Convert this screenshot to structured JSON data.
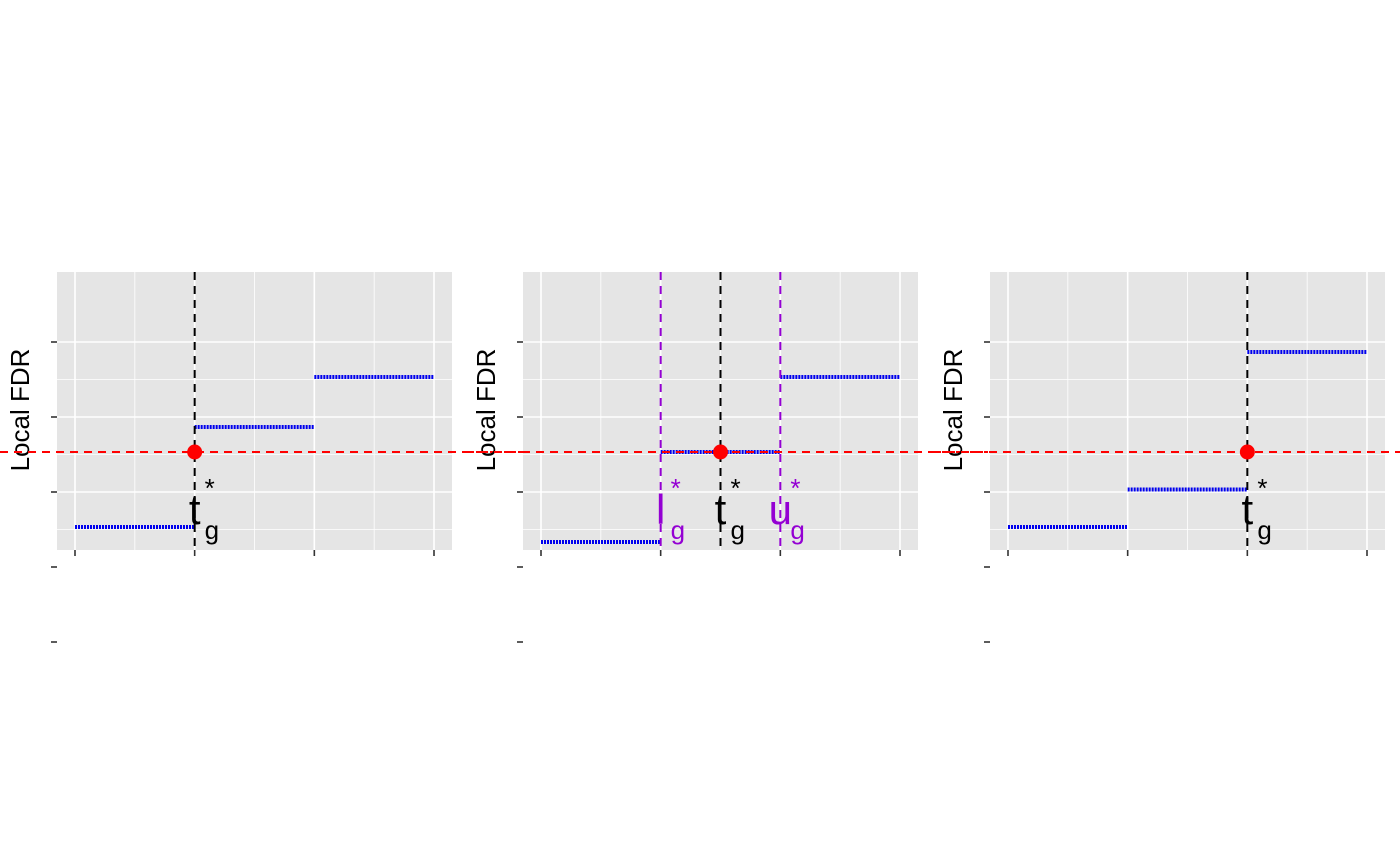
{
  "chart_data": [
    {
      "type": "step",
      "ylabel": "Local FDR",
      "xlim": [
        0,
        3
      ],
      "ylim": [
        0,
        1
      ],
      "xticks": [
        0,
        1,
        2,
        3
      ],
      "yticks": [
        0.02,
        0.17,
        0.32,
        0.47,
        0.62
      ],
      "threshold": 0.4,
      "segments": [
        {
          "x0": 0,
          "x1": 1,
          "y": 0.25
        },
        {
          "x0": 1,
          "x1": 2,
          "y": 0.45
        },
        {
          "x0": 2,
          "x1": 3,
          "y": 0.55
        }
      ],
      "vlines": [
        {
          "x": 1,
          "color": "#000000",
          "label": "t",
          "sub": "g",
          "sup": "*"
        }
      ],
      "point": {
        "x": 1,
        "y": 0.4
      }
    },
    {
      "type": "step",
      "ylabel": "Local FDR",
      "xlim": [
        0,
        3
      ],
      "ylim": [
        0,
        1
      ],
      "xticks": [
        0,
        1,
        2,
        3
      ],
      "yticks": [
        0.02,
        0.17,
        0.32,
        0.47,
        0.62
      ],
      "threshold": 0.4,
      "segments": [
        {
          "x0": 0,
          "x1": 1,
          "y": 0.22
        },
        {
          "x0": 1,
          "x1": 2,
          "y": 0.4
        },
        {
          "x0": 2,
          "x1": 3,
          "y": 0.55
        }
      ],
      "vlines": [
        {
          "x": 1,
          "color": "#9400d3",
          "label": "l",
          "sub": "g",
          "sup": "*"
        },
        {
          "x": 1.5,
          "color": "#000000",
          "label": "t",
          "sub": "g",
          "sup": "*"
        },
        {
          "x": 2,
          "color": "#9400d3",
          "label": "u",
          "sub": "g",
          "sup": "*"
        }
      ],
      "point": {
        "x": 1.5,
        "y": 0.4
      }
    },
    {
      "type": "step",
      "ylabel": "Local FDR",
      "xlim": [
        0,
        3
      ],
      "ylim": [
        0,
        1
      ],
      "xticks": [
        0,
        1,
        2,
        3
      ],
      "yticks": [
        0.02,
        0.17,
        0.32,
        0.47,
        0.62
      ],
      "threshold": 0.4,
      "segments": [
        {
          "x0": 0,
          "x1": 1,
          "y": 0.25
        },
        {
          "x0": 1,
          "x1": 2,
          "y": 0.325
        },
        {
          "x0": 2,
          "x1": 3,
          "y": 0.6
        }
      ],
      "vlines": [
        {
          "x": 2,
          "color": "#000000",
          "label": "t",
          "sub": "g",
          "sup": "*"
        }
      ],
      "point": {
        "x": 2,
        "y": 0.4
      }
    }
  ]
}
